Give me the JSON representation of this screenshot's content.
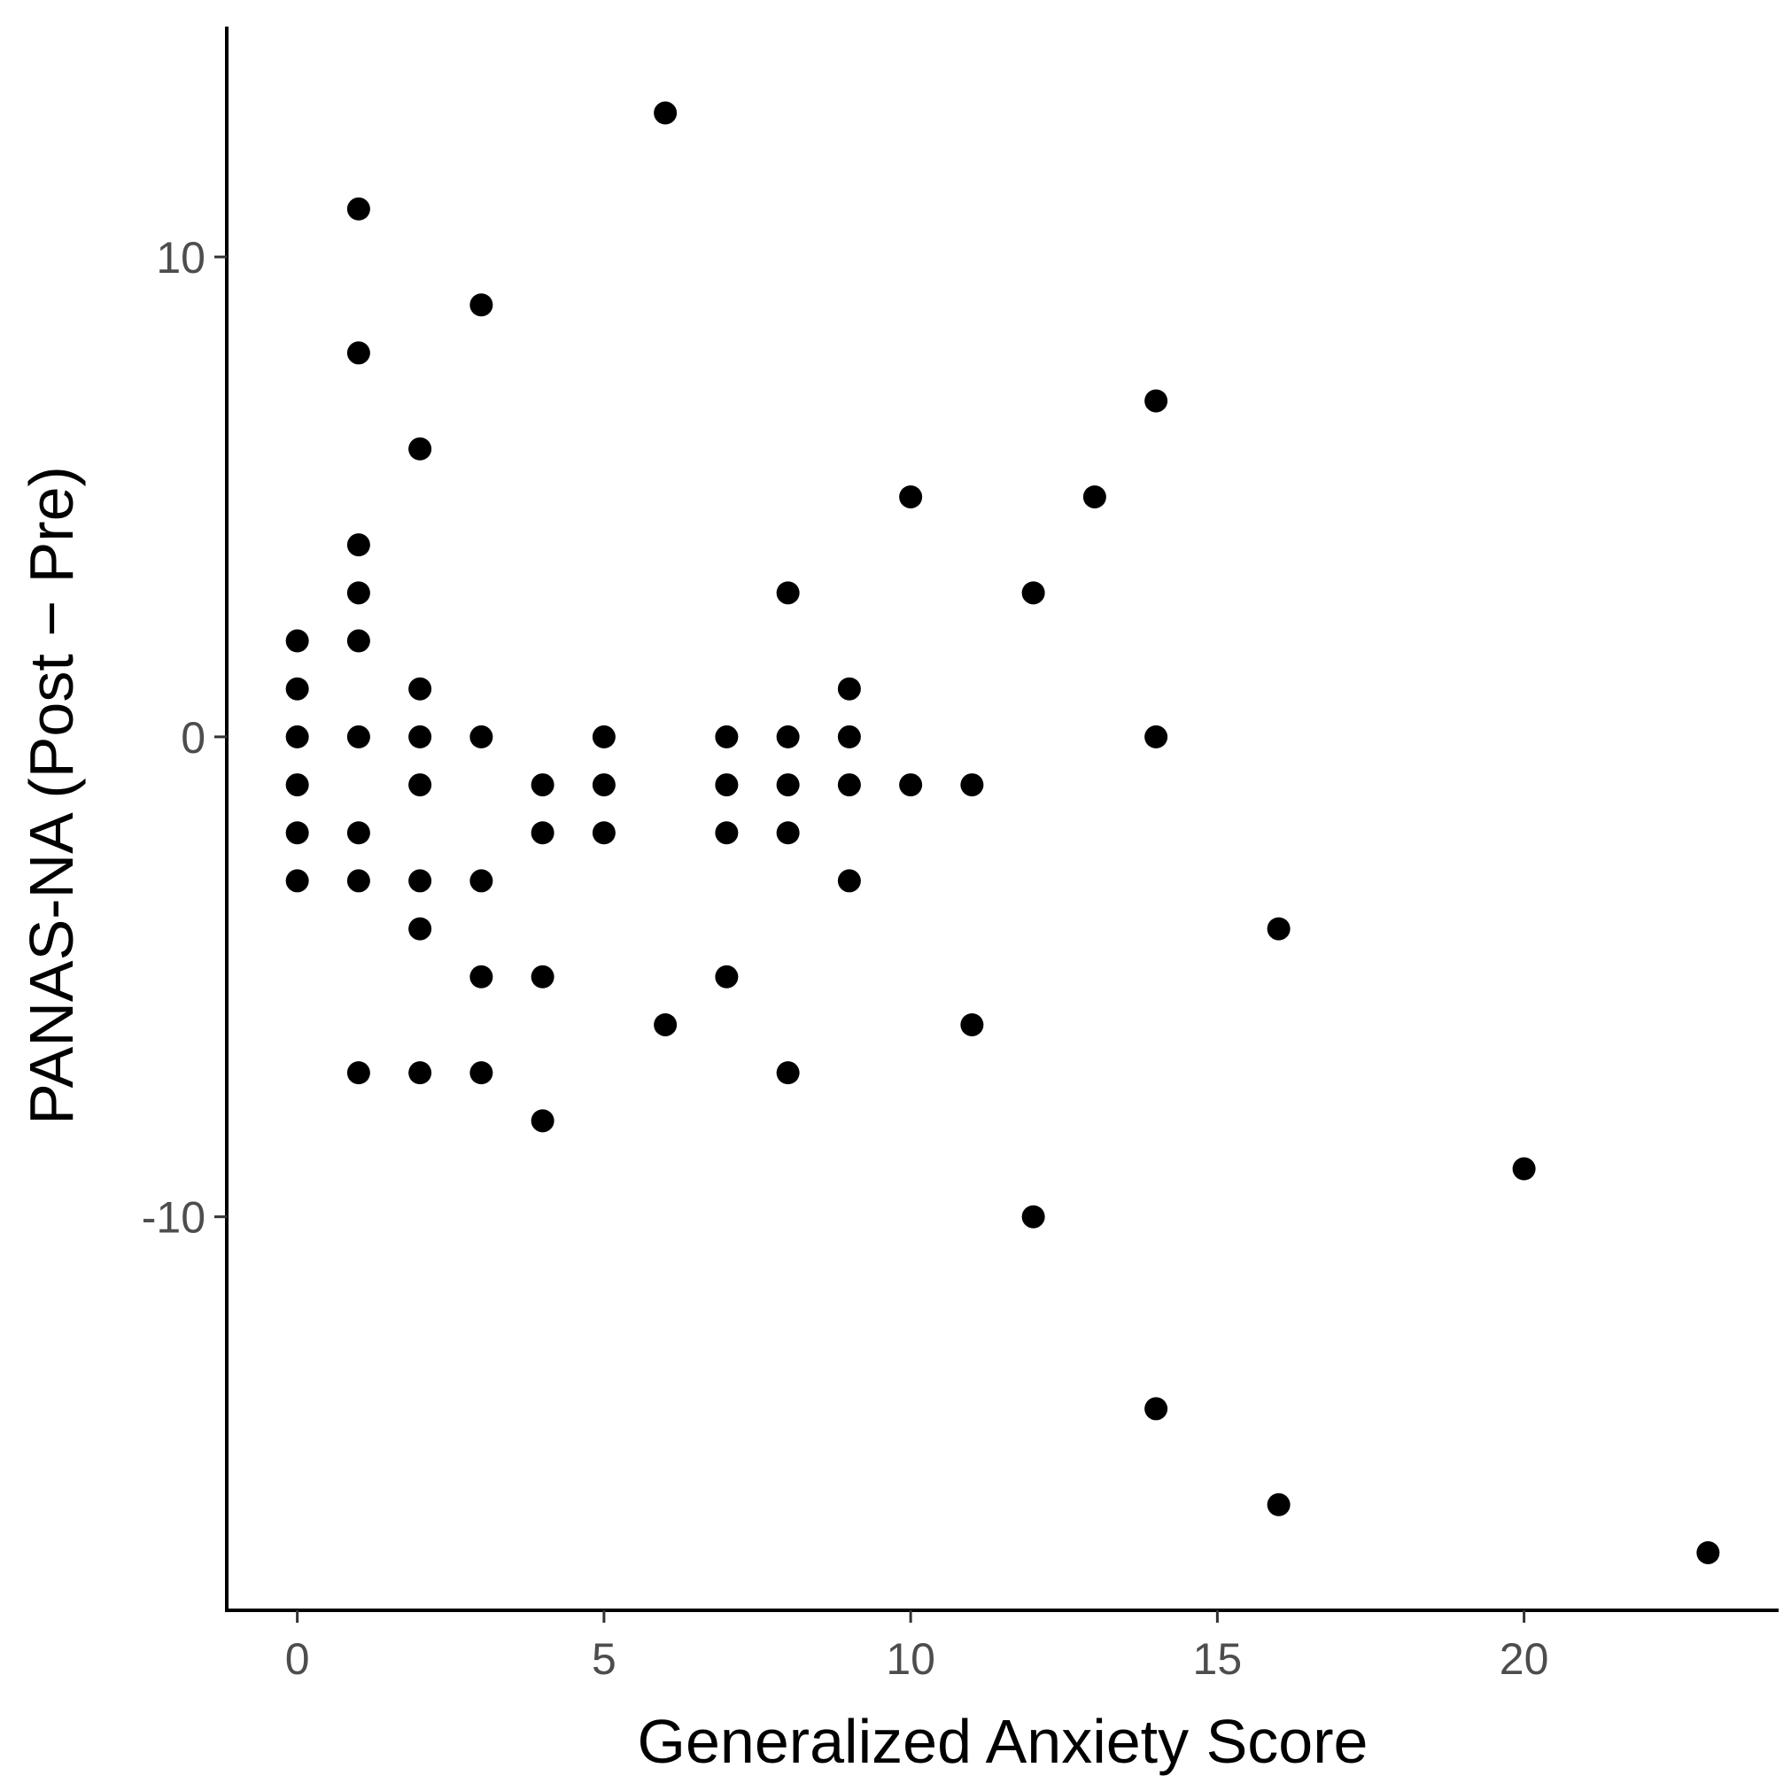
{
  "chart_data": {
    "type": "scatter",
    "title": "",
    "xlabel": "Generalized Anxiety Score",
    "ylabel": "PANAS-NA (Post − Pre)",
    "xlim": [
      -1.15,
      24.15
    ],
    "ylim": [
      -18.2,
      14.8
    ],
    "x_ticks": [
      0,
      5,
      10,
      15,
      20
    ],
    "x_tick_labels": [
      "0",
      "5",
      "10",
      "15",
      "20"
    ],
    "y_ticks": [
      -10,
      0,
      10
    ],
    "y_tick_labels": [
      "-10",
      "0",
      "10"
    ],
    "grid": false,
    "legend": "none",
    "point_color": "#000000",
    "points": [
      {
        "x": 0,
        "y": 2
      },
      {
        "x": 0,
        "y": 1
      },
      {
        "x": 0,
        "y": 0
      },
      {
        "x": 0,
        "y": -1
      },
      {
        "x": 0,
        "y": -2
      },
      {
        "x": 0,
        "y": -3
      },
      {
        "x": 1,
        "y": 11
      },
      {
        "x": 1,
        "y": 8
      },
      {
        "x": 1,
        "y": 4
      },
      {
        "x": 1,
        "y": 3
      },
      {
        "x": 1,
        "y": 2
      },
      {
        "x": 1,
        "y": 0
      },
      {
        "x": 1,
        "y": -2
      },
      {
        "x": 1,
        "y": -3
      },
      {
        "x": 1,
        "y": -7
      },
      {
        "x": 2,
        "y": 6
      },
      {
        "x": 2,
        "y": 1
      },
      {
        "x": 2,
        "y": 0
      },
      {
        "x": 2,
        "y": -1
      },
      {
        "x": 2,
        "y": -3
      },
      {
        "x": 2,
        "y": -4
      },
      {
        "x": 2,
        "y": -7
      },
      {
        "x": 3,
        "y": 9
      },
      {
        "x": 3,
        "y": 0
      },
      {
        "x": 3,
        "y": -3
      },
      {
        "x": 3,
        "y": -5
      },
      {
        "x": 3,
        "y": -7
      },
      {
        "x": 4,
        "y": -1
      },
      {
        "x": 4,
        "y": -2
      },
      {
        "x": 4,
        "y": -5
      },
      {
        "x": 4,
        "y": -8
      },
      {
        "x": 5,
        "y": 0
      },
      {
        "x": 5,
        "y": -1
      },
      {
        "x": 5,
        "y": -2
      },
      {
        "x": 6,
        "y": 13
      },
      {
        "x": 6,
        "y": -6
      },
      {
        "x": 7,
        "y": 0
      },
      {
        "x": 7,
        "y": -1
      },
      {
        "x": 7,
        "y": -2
      },
      {
        "x": 7,
        "y": -5
      },
      {
        "x": 8,
        "y": 3
      },
      {
        "x": 8,
        "y": 0
      },
      {
        "x": 8,
        "y": -1
      },
      {
        "x": 8,
        "y": -2
      },
      {
        "x": 8,
        "y": -7
      },
      {
        "x": 9,
        "y": 1
      },
      {
        "x": 9,
        "y": 0
      },
      {
        "x": 9,
        "y": -1
      },
      {
        "x": 9,
        "y": -3
      },
      {
        "x": 10,
        "y": 5
      },
      {
        "x": 10,
        "y": -1
      },
      {
        "x": 11,
        "y": -1
      },
      {
        "x": 11,
        "y": -6
      },
      {
        "x": 12,
        "y": 3
      },
      {
        "x": 12,
        "y": -10
      },
      {
        "x": 13,
        "y": 5
      },
      {
        "x": 14,
        "y": 7
      },
      {
        "x": 14,
        "y": 0
      },
      {
        "x": 14,
        "y": -14
      },
      {
        "x": 16,
        "y": -4
      },
      {
        "x": 16,
        "y": -16
      },
      {
        "x": 20,
        "y": -9
      },
      {
        "x": 23,
        "y": -17
      }
    ]
  }
}
